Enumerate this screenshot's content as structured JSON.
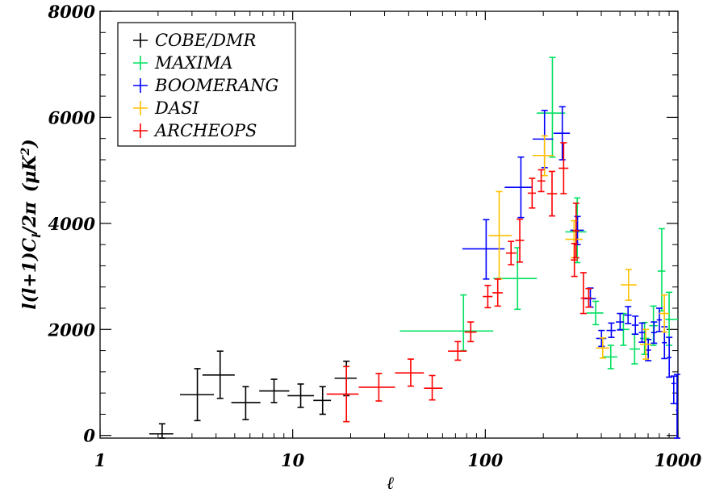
{
  "chart_data": {
    "type": "scatter",
    "title": "",
    "xlabel": "ℓ",
    "ylabel": "l(l+1)C_l/2π (μK²)",
    "ylabel_parts": {
      "main": "l(l+1)C",
      "sub": "l",
      "mid": "/2π",
      "unit_open": "(μK",
      "unit_sup": "2",
      "unit_close": ")"
    },
    "x_scale": "log",
    "xlim": [
      1,
      1000
    ],
    "ylim": [
      -50,
      8000
    ],
    "x_ticks": [
      1,
      10,
      100,
      1000
    ],
    "x_tick_labels": [
      "1",
      "10",
      "100",
      "1000"
    ],
    "y_ticks": [
      0,
      2000,
      4000,
      6000,
      8000
    ],
    "y_tick_labels": [
      "0",
      "2000",
      "4000",
      "6000",
      "8000"
    ],
    "grid": false,
    "legend_position": "top-left",
    "series": [
      {
        "name": "COBE/DMR",
        "color": "#000000",
        "points": [
          {
            "x": 2.1,
            "xlo": 1.8,
            "xhi": 2.4,
            "y": 30,
            "ylo": -50,
            "yhi": 220
          },
          {
            "x": 3.2,
            "xlo": 2.6,
            "xhi": 3.9,
            "y": 770,
            "ylo": 280,
            "yhi": 1260
          },
          {
            "x": 4.2,
            "xlo": 3.4,
            "xhi": 5.0,
            "y": 1140,
            "ylo": 700,
            "yhi": 1590
          },
          {
            "x": 5.7,
            "xlo": 4.8,
            "xhi": 6.8,
            "y": 620,
            "ylo": 300,
            "yhi": 920
          },
          {
            "x": 8.0,
            "xlo": 6.7,
            "xhi": 9.6,
            "y": 840,
            "ylo": 620,
            "yhi": 1060
          },
          {
            "x": 11.0,
            "xlo": 9.4,
            "xhi": 12.9,
            "y": 750,
            "ylo": 530,
            "yhi": 970
          },
          {
            "x": 14.3,
            "xlo": 12.8,
            "xhi": 15.8,
            "y": 660,
            "ylo": 400,
            "yhi": 920
          },
          {
            "x": 19.0,
            "xlo": 16.5,
            "xhi": 21.5,
            "y": 1080,
            "ylo": 750,
            "yhi": 1400
          }
        ]
      },
      {
        "name": "MAXIMA",
        "color": "#00e060",
        "points": [
          {
            "x": 77,
            "xlo": 36,
            "xhi": 110,
            "y": 1970,
            "ylo": 1600,
            "yhi": 2650
          },
          {
            "x": 147,
            "xlo": 110,
            "xhi": 185,
            "y": 2960,
            "ylo": 2380,
            "yhi": 3540
          },
          {
            "x": 223,
            "xlo": 185,
            "xhi": 260,
            "y": 6080,
            "ylo": 5250,
            "yhi": 7130
          },
          {
            "x": 300,
            "xlo": 260,
            "xhi": 335,
            "y": 3840,
            "ylo": 3260,
            "yhi": 4480
          },
          {
            "x": 374,
            "xlo": 335,
            "xhi": 410,
            "y": 2310,
            "ylo": 2090,
            "yhi": 2530
          },
          {
            "x": 448,
            "xlo": 410,
            "xhi": 485,
            "y": 1480,
            "ylo": 1260,
            "yhi": 1700
          },
          {
            "x": 521,
            "xlo": 485,
            "xhi": 560,
            "y": 2000,
            "ylo": 1700,
            "yhi": 2300
          },
          {
            "x": 596,
            "xlo": 560,
            "xhi": 635,
            "y": 1630,
            "ylo": 1350,
            "yhi": 1910
          },
          {
            "x": 671,
            "xlo": 635,
            "xhi": 710,
            "y": 1830,
            "ylo": 1530,
            "yhi": 2130
          },
          {
            "x": 746,
            "xlo": 710,
            "xhi": 785,
            "y": 2070,
            "ylo": 1700,
            "yhi": 2440
          },
          {
            "x": 824,
            "xlo": 785,
            "xhi": 860,
            "y": 3100,
            "ylo": 2350,
            "yhi": 3900
          },
          {
            "x": 900,
            "xlo": 860,
            "xhi": 1000,
            "y": 2190,
            "ylo": 1700,
            "yhi": 2700
          }
        ]
      },
      {
        "name": "BOOMERANG",
        "color": "#0000ff",
        "points": [
          {
            "x": 101,
            "xlo": 76,
            "xhi": 126,
            "y": 3520,
            "ylo": 2950,
            "yhi": 4070
          },
          {
            "x": 153,
            "xlo": 126,
            "xhi": 175,
            "y": 4680,
            "ylo": 4110,
            "yhi": 5250
          },
          {
            "x": 203,
            "xlo": 176,
            "xhi": 225,
            "y": 5590,
            "ylo": 5050,
            "yhi": 6130
          },
          {
            "x": 251,
            "xlo": 226,
            "xhi": 275,
            "y": 5700,
            "ylo": 5200,
            "yhi": 6200
          },
          {
            "x": 301,
            "xlo": 276,
            "xhi": 325,
            "y": 3870,
            "ylo": 3600,
            "yhi": 4130
          },
          {
            "x": 351,
            "xlo": 326,
            "xhi": 375,
            "y": 2580,
            "ylo": 2420,
            "yhi": 2780
          },
          {
            "x": 401,
            "xlo": 376,
            "xhi": 425,
            "y": 1830,
            "ylo": 1680,
            "yhi": 1980
          },
          {
            "x": 451,
            "xlo": 426,
            "xhi": 475,
            "y": 1980,
            "ylo": 1850,
            "yhi": 2120
          },
          {
            "x": 501,
            "xlo": 476,
            "xhi": 525,
            "y": 2140,
            "ylo": 1990,
            "yhi": 2300
          },
          {
            "x": 551,
            "xlo": 526,
            "xhi": 575,
            "y": 2270,
            "ylo": 2110,
            "yhi": 2430
          },
          {
            "x": 601,
            "xlo": 576,
            "xhi": 625,
            "y": 2080,
            "ylo": 1910,
            "yhi": 2250
          },
          {
            "x": 651,
            "xlo": 626,
            "xhi": 675,
            "y": 1940,
            "ylo": 1760,
            "yhi": 2120
          },
          {
            "x": 701,
            "xlo": 676,
            "xhi": 725,
            "y": 1610,
            "ylo": 1410,
            "yhi": 1810
          },
          {
            "x": 751,
            "xlo": 726,
            "xhi": 775,
            "y": 1940,
            "ylo": 1740,
            "yhi": 2140
          },
          {
            "x": 801,
            "xlo": 776,
            "xhi": 825,
            "y": 2180,
            "ylo": 1960,
            "yhi": 2400
          },
          {
            "x": 851,
            "xlo": 826,
            "xhi": 875,
            "y": 1750,
            "ylo": 1450,
            "yhi": 2050
          },
          {
            "x": 901,
            "xlo": 876,
            "xhi": 925,
            "y": 1470,
            "ylo": 1100,
            "yhi": 1850
          },
          {
            "x": 951,
            "xlo": 926,
            "xhi": 975,
            "y": 980,
            "ylo": 600,
            "yhi": 1120
          },
          {
            "x": 990,
            "xlo": 976,
            "xhi": 1000,
            "y": 480,
            "ylo": -50,
            "yhi": 1150
          }
        ]
      },
      {
        "name": "DASI",
        "color": "#ffc000",
        "points": [
          {
            "x": 118,
            "xlo": 104,
            "xhi": 137,
            "y": 3770,
            "ylo": 2950,
            "yhi": 4600
          },
          {
            "x": 203,
            "xlo": 176,
            "xhi": 227,
            "y": 5280,
            "ylo": 4900,
            "yhi": 5650
          },
          {
            "x": 289,
            "xlo": 260,
            "xhi": 320,
            "y": 3700,
            "ylo": 3350,
            "yhi": 4050
          },
          {
            "x": 407,
            "xlo": 375,
            "xhi": 440,
            "y": 1650,
            "ylo": 1460,
            "yhi": 1840
          },
          {
            "x": 554,
            "xlo": 505,
            "xhi": 610,
            "y": 2840,
            "ylo": 2550,
            "yhi": 3130
          },
          {
            "x": 680,
            "xlo": 635,
            "xhi": 725,
            "y": 1720,
            "ylo": 1440,
            "yhi": 2000
          },
          {
            "x": 850,
            "xlo": 800,
            "xhi": 900,
            "y": 2300,
            "ylo": 1950,
            "yhi": 2650
          }
        ]
      },
      {
        "name": "ARCHEOPS",
        "color": "#ff0000",
        "points": [
          {
            "x": 19,
            "xlo": 15,
            "xhi": 22,
            "y": 780,
            "ylo": 260,
            "yhi": 1300
          },
          {
            "x": 28,
            "xlo": 22,
            "xhi": 34,
            "y": 910,
            "ylo": 650,
            "yhi": 1170
          },
          {
            "x": 41,
            "xlo": 34,
            "xhi": 48,
            "y": 1180,
            "ylo": 930,
            "yhi": 1440
          },
          {
            "x": 53,
            "xlo": 48,
            "xhi": 60,
            "y": 890,
            "ylo": 670,
            "yhi": 1130
          },
          {
            "x": 72,
            "xlo": 64,
            "xhi": 80,
            "y": 1590,
            "ylo": 1420,
            "yhi": 1770
          },
          {
            "x": 84,
            "xlo": 78,
            "xhi": 90,
            "y": 1950,
            "ylo": 1770,
            "yhi": 2140
          },
          {
            "x": 103,
            "xlo": 97,
            "xhi": 109,
            "y": 2620,
            "ylo": 2410,
            "yhi": 2830
          },
          {
            "x": 116,
            "xlo": 109,
            "xhi": 123,
            "y": 2690,
            "ylo": 2440,
            "yhi": 2950
          },
          {
            "x": 136,
            "xlo": 128,
            "xhi": 145,
            "y": 3440,
            "ylo": 3220,
            "yhi": 3660
          },
          {
            "x": 151,
            "xlo": 143,
            "xhi": 159,
            "y": 3680,
            "ylo": 3270,
            "yhi": 4080
          },
          {
            "x": 175,
            "xlo": 166,
            "xhi": 183,
            "y": 4570,
            "ylo": 4290,
            "yhi": 4850
          },
          {
            "x": 195,
            "xlo": 186,
            "xhi": 205,
            "y": 4800,
            "ylo": 4600,
            "yhi": 5010
          },
          {
            "x": 222,
            "xlo": 209,
            "xhi": 236,
            "y": 4560,
            "ylo": 4140,
            "yhi": 4980
          },
          {
            "x": 255,
            "xlo": 240,
            "xhi": 270,
            "y": 5040,
            "ylo": 4560,
            "yhi": 5520
          },
          {
            "x": 290,
            "xlo": 278,
            "xhi": 302,
            "y": 3310,
            "ylo": 3000,
            "yhi": 3620
          },
          {
            "x": 344,
            "xlo": 330,
            "xhi": 358,
            "y": 2590,
            "ylo": 2420,
            "yhi": 2770
          },
          {
            "x": 296,
            "xlo": 284,
            "xhi": 308,
            "y": 3860,
            "ylo": 3350,
            "yhi": 4380
          },
          {
            "x": 323,
            "xlo": 313,
            "xhi": 334,
            "y": 2590,
            "ylo": 2300,
            "yhi": 3070
          }
        ]
      }
    ]
  }
}
